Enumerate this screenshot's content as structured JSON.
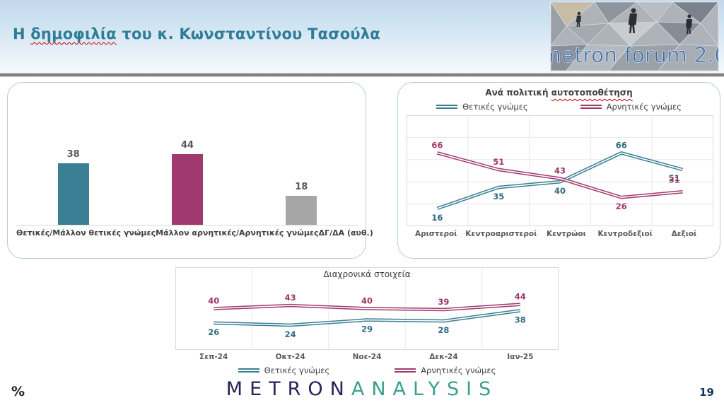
{
  "header": {
    "title_prefix": "Η ",
    "title_underlined": "δημοφιλία",
    "title_rest": " του κ. Κωνσταντίνου Τασούλα",
    "logo_text": "metron forum 2.0"
  },
  "footer": {
    "percent_symbol": "%",
    "brand_part1": "METRON",
    "brand_part2": "ANALYSIS",
    "page_number": "19"
  },
  "colors": {
    "positive_line": "#3A7F93",
    "positive_label": "#2E6B80",
    "negative_line": "#A03A6E",
    "negative_label": "#9E3768",
    "neutral_bar": "#A6A6A6",
    "header_title_teal": "#2E7D97",
    "spellcheck_red": "#C00000",
    "axis_gray": "#D9D9D9",
    "grid_gray": "#E8E8E8",
    "label_gray": "#595959"
  },
  "chart_data": [
    {
      "id": "overall-bar",
      "type": "bar",
      "categories": [
        "Θετικές/Μάλλον θετικές γνώμες",
        "Μάλλον αρνητικές/Αρνητικές γνώμες",
        "ΔΓ/ΔΑ (αυθ.)"
      ],
      "values": [
        38,
        44,
        18
      ],
      "colors": [
        "#3A7F93",
        "#A03A6E",
        "#A6A6A6"
      ],
      "ylim": [
        0,
        75
      ],
      "grid": false
    },
    {
      "id": "by-political-position",
      "type": "line",
      "title_prefix": "Ανά πολιτική ",
      "title_underlined": "αυτοτοποθέτηση",
      "categories": [
        "Αριστεροί",
        "Κεντροαριστεροί",
        "Κεντρώοι",
        "Κεντροδεξιοί",
        "Δεξιοί"
      ],
      "series": [
        {
          "name": "Θετικές γνώμες",
          "color": "#3A7F93",
          "label_color": "#2E6B80",
          "values": [
            16,
            35,
            40,
            66,
            51
          ]
        },
        {
          "name": "Αρνητικές γνώμες",
          "color": "#A03A6E",
          "label_color": "#9E3768",
          "values": [
            66,
            51,
            43,
            26,
            31
          ]
        }
      ],
      "ylim": [
        0,
        100
      ],
      "grid": true,
      "legend_position": "top"
    },
    {
      "id": "time-series",
      "type": "line",
      "title": "Διαχρονικά στοιχεία",
      "categories": [
        "Σεπ-24",
        "Οκτ-24",
        "Νοε-24",
        "Δεκ-24",
        "Ιαν-25"
      ],
      "series": [
        {
          "name": "Θετικές γνώμες",
          "color": "#3A7F93",
          "label_color": "#2E6B80",
          "values": [
            26,
            24,
            29,
            28,
            38
          ]
        },
        {
          "name": "Αρνητικές γνώμες",
          "color": "#A03A6E",
          "label_color": "#9E3768",
          "values": [
            40,
            43,
            40,
            39,
            44
          ]
        }
      ],
      "ylim": [
        0,
        80
      ],
      "grid": "vertical",
      "legend_position": "bottom"
    }
  ]
}
